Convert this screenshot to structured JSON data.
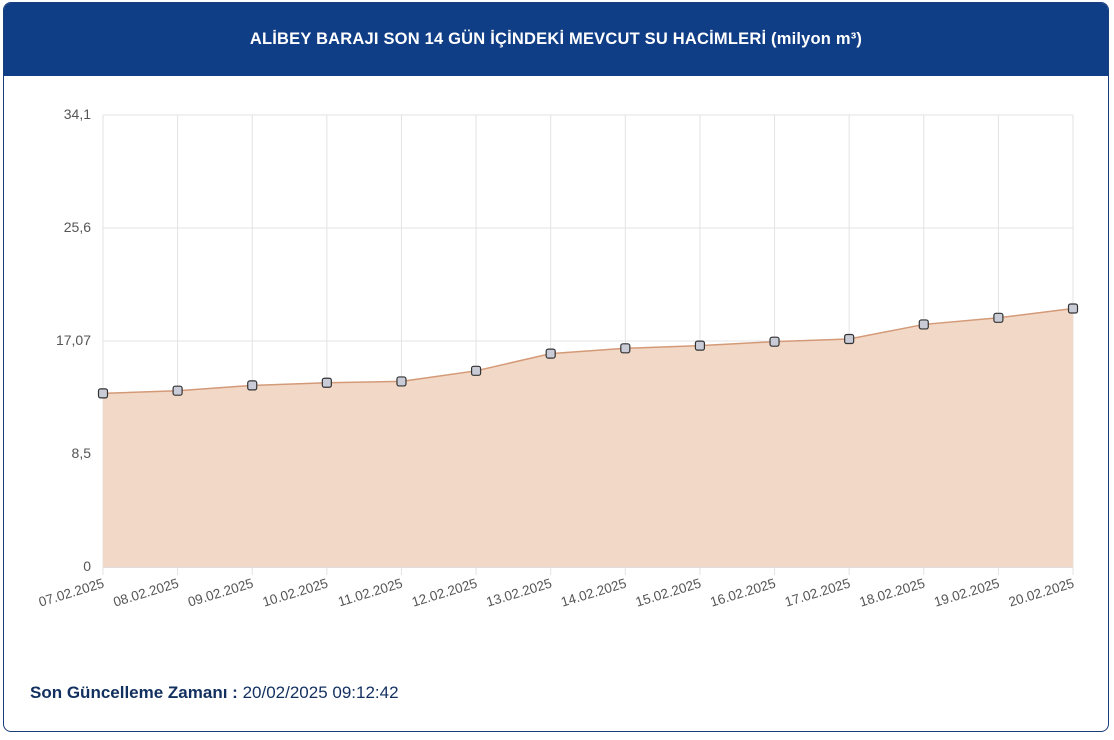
{
  "header": {
    "title": "ALİBEY BARAJI SON 14 GÜN İÇİNDEKİ MEVCUT SU HACİMLERİ (milyon m³)"
  },
  "footer": {
    "label": "Son Güncelleme Zamanı :",
    "value": "20/02/2025 09:12:42"
  },
  "colors": {
    "header_bg": "#0f3d86",
    "area_fill": "#f2d8c6",
    "line": "#d49a78",
    "point_fill": "#c9cbd6",
    "point_stroke": "#333333"
  },
  "chart_data": {
    "type": "area",
    "title": "ALİBEY BARAJI SON 14 GÜN İÇİNDEKİ MEVCUT SU HACİMLERİ (milyon m³)",
    "categories": [
      "07.02.2025",
      "08.02.2025",
      "09.02.2025",
      "10.02.2025",
      "11.02.2025",
      "12.02.2025",
      "13.02.2025",
      "14.02.2025",
      "15.02.2025",
      "16.02.2025",
      "17.02.2025",
      "18.02.2025",
      "19.02.2025",
      "20.02.2025"
    ],
    "values": [
      13.1,
      13.3,
      13.7,
      13.9,
      14.0,
      14.8,
      16.1,
      16.5,
      16.7,
      17.0,
      17.2,
      18.3,
      18.8,
      19.5
    ],
    "yticks": [
      "0",
      "8,5",
      "17,07",
      "25,6",
      "34,1"
    ],
    "ylim": [
      0,
      34.1
    ],
    "grid": true
  }
}
